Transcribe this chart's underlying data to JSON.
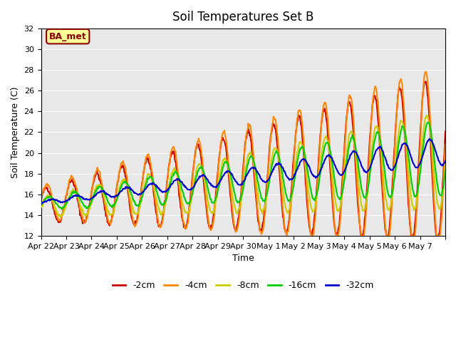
{
  "title": "Soil Temperatures Set B",
  "xlabel": "Time",
  "ylabel": "Soil Temperature (C)",
  "ylim": [
    12,
    32
  ],
  "yticks": [
    12,
    14,
    16,
    18,
    20,
    22,
    24,
    26,
    28,
    30,
    32
  ],
  "xtick_labels": [
    "Apr 22",
    "Apr 23",
    "Apr 24",
    "Apr 25",
    "Apr 26",
    "Apr 27",
    "Apr 28",
    "Apr 29",
    "Apr 30",
    "May 1",
    "May 2",
    "May 3",
    "May 4",
    "May 5",
    "May 6",
    "May 7",
    ""
  ],
  "legend_labels": [
    "-2cm",
    "-4cm",
    "-8cm",
    "-16cm",
    "-32cm"
  ],
  "colors": [
    "#cc0000",
    "#ff8800",
    "#cccc00",
    "#00cc00",
    "#0000cc"
  ],
  "bg_color": "#e8e8e8",
  "annotation": "BA_met",
  "annotation_color": "#880000",
  "annotation_bg": "#ffff99",
  "linewidth": 1.5,
  "num_days": 16,
  "points_per_day": 48
}
